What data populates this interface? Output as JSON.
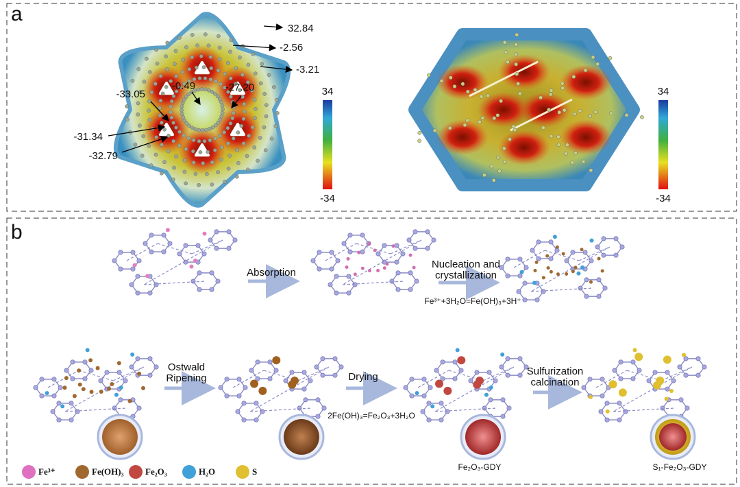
{
  "panel_a": {
    "label": "a",
    "left_map": {
      "annotations": [
        "32.84",
        "-2.56",
        "-3.21",
        "-0.49",
        "-27.20",
        "-33.05",
        "-31.34",
        "-32.79"
      ],
      "scale_max": "34",
      "scale_min": "-34"
    },
    "right_map": {
      "scale_max": "34",
      "scale_min": "-34"
    }
  },
  "panel_b": {
    "label": "b",
    "steps": [
      {
        "lines": [
          "Absorption"
        ]
      },
      {
        "lines": [
          "Nucleation and",
          "crystallization"
        ]
      },
      {
        "lines": [
          "Ostwald",
          "Ripening"
        ]
      },
      {
        "lines": [
          "Drying"
        ]
      },
      {
        "lines": [
          "Sulfurization",
          "calcination"
        ]
      }
    ],
    "equations": [
      "Fe³⁺+3H₂O=Fe(OH)₃+3H⁺",
      "2Fe(OH)₃=Fe₂O₃+3H₂O"
    ],
    "products": [
      "Fe₂O₃-GDY",
      "S₁-Fe₂O₃-GDY"
    ],
    "legend": [
      "Fe³⁺",
      "Fe(OH)₃",
      "Fe₂O₃",
      "H₂O",
      "S"
    ]
  }
}
